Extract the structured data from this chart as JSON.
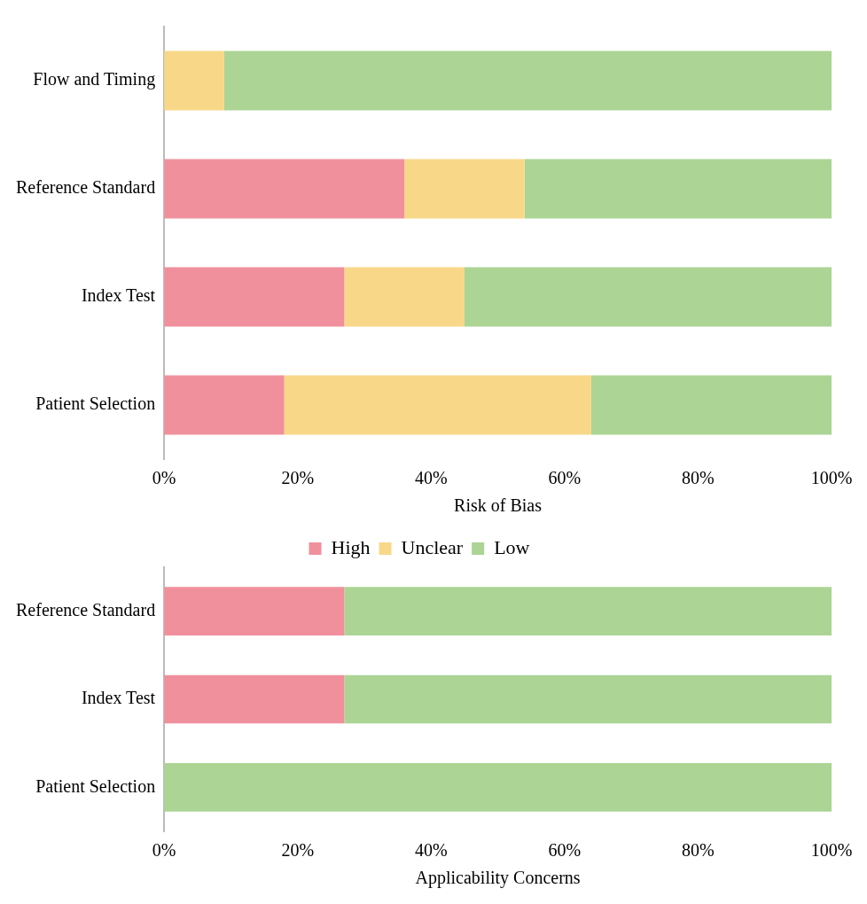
{
  "chart_data": [
    {
      "type": "bar",
      "orientation": "horizontal",
      "stacked": true,
      "xlabel": "Risk of Bias",
      "categories": [
        "Flow and Timing",
        "Reference Standard",
        "Index Test",
        "Patient Selection"
      ],
      "series": [
        {
          "color": "#f0909c",
          "values": [
            0,
            36,
            27,
            18
          ]
        },
        {
          "color": "#f8d888",
          "values": [
            9,
            18,
            18,
            46
          ]
        },
        {
          "color": "#acd494",
          "values": [
            91,
            46,
            55,
            36
          ]
        }
      ],
      "xlim": [
        0,
        100
      ],
      "xticks": [
        {
          "value": 0,
          "label": "0%"
        },
        {
          "value": 20,
          "label": "20%"
        },
        {
          "value": 40,
          "label": "40%"
        },
        {
          "value": 60,
          "label": "60%"
        },
        {
          "value": 80,
          "label": "80%"
        },
        {
          "value": 100,
          "label": "100%"
        }
      ],
      "grid": false,
      "legend": false
    },
    {
      "type": "bar",
      "orientation": "horizontal",
      "stacked": true,
      "xlabel": "Applicability Concerns",
      "categories": [
        "Reference Standard",
        "Index Test",
        "Patient Selection"
      ],
      "series": [
        {
          "name": "High",
          "color": "#f0909c",
          "values": [
            27,
            27,
            0
          ]
        },
        {
          "name": "Unclear",
          "color": "#f8d888",
          "values": [
            0,
            0,
            0
          ]
        },
        {
          "name": "Low",
          "color": "#acd494",
          "values": [
            73,
            73,
            100
          ]
        }
      ],
      "xlim": [
        0,
        100
      ],
      "xticks": [
        {
          "value": 0,
          "label": "0%"
        },
        {
          "value": 20,
          "label": "20%"
        },
        {
          "value": 40,
          "label": "40%"
        },
        {
          "value": 60,
          "label": "60%"
        },
        {
          "value": 80,
          "label": "80%"
        },
        {
          "value": 100,
          "label": "100%"
        }
      ],
      "grid": false,
      "legend": "top"
    }
  ]
}
